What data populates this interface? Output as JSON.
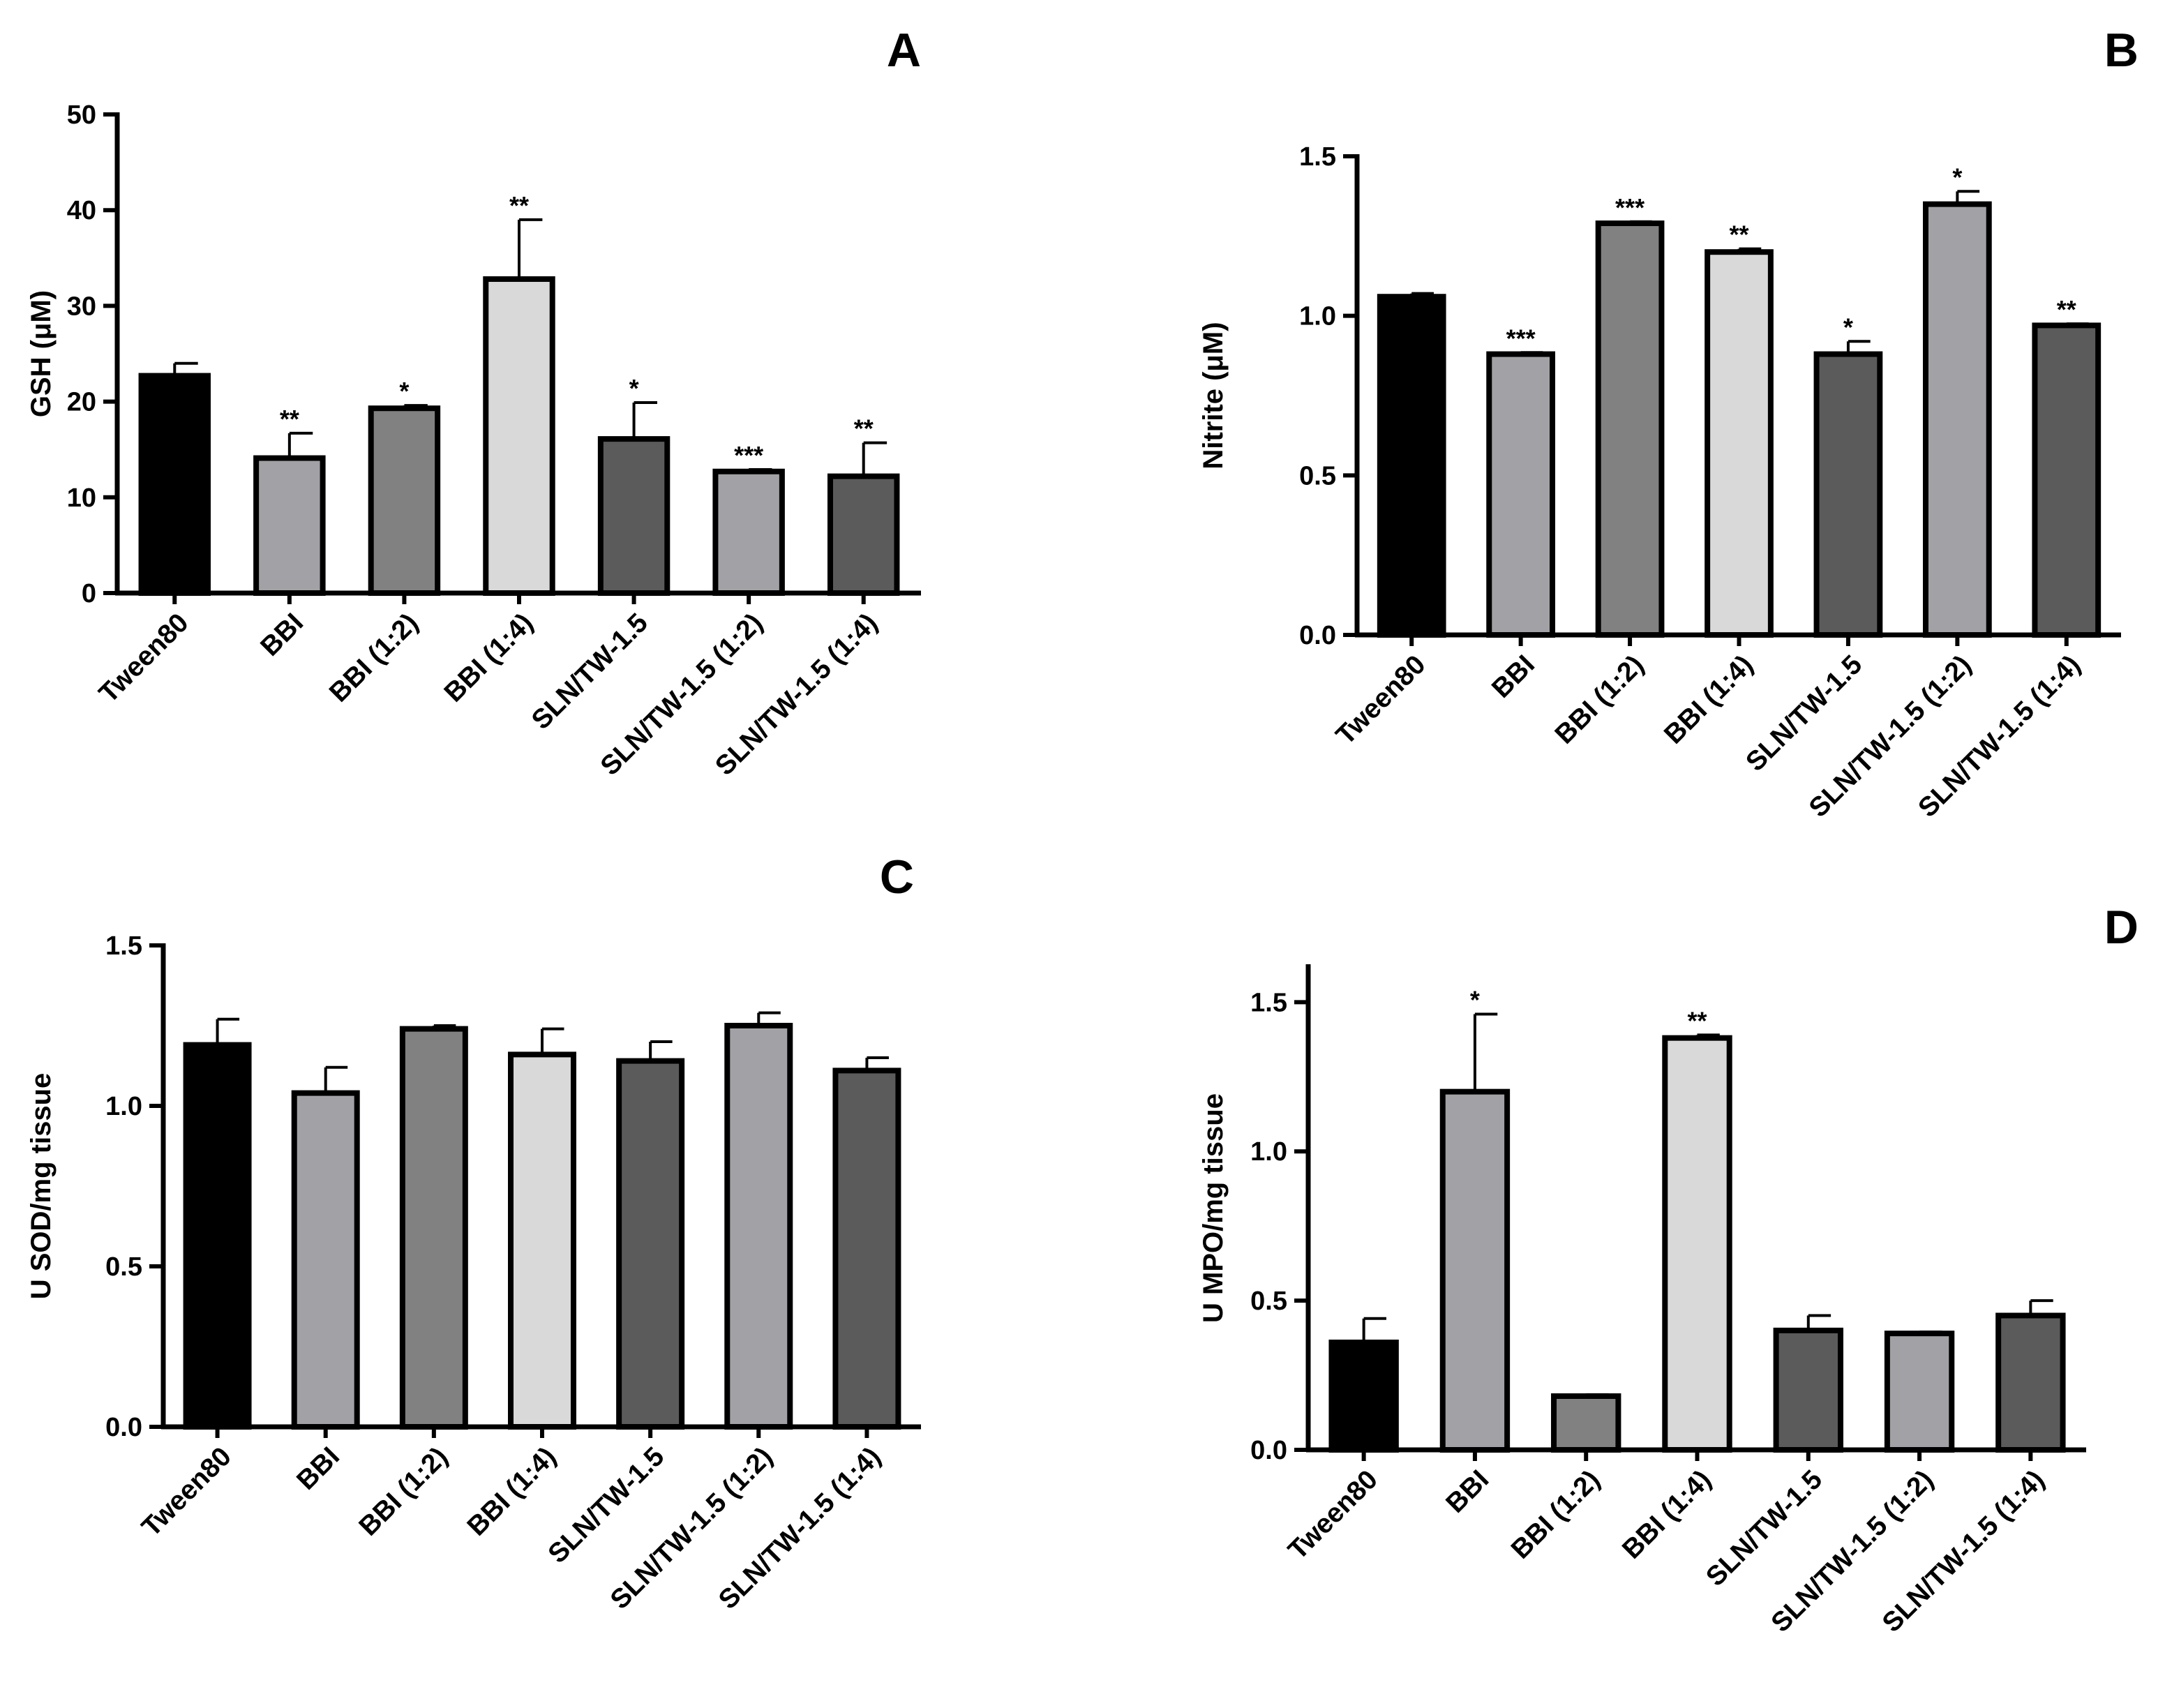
{
  "figure": {
    "panel_count": 4
  },
  "chart_data": [
    {
      "panel": "A",
      "type": "bar",
      "title": "A",
      "xlabel": "",
      "ylabel": "GSH (μM)",
      "categories": [
        "Tween80",
        "BBI",
        "BBI (1:2)",
        "BBI (1:4)",
        "SLN/TW-1.5",
        "SLN/TW-1.5 (1:2)",
        "SLN/TW-1.5 (1:4)"
      ],
      "values": [
        22.7,
        14.1,
        19.3,
        32.8,
        16.1,
        12.7,
        12.2
      ],
      "errors": [
        1.3,
        2.6,
        0.3,
        6.2,
        3.8,
        0.2,
        3.5
      ],
      "significance": [
        "",
        "**",
        "*",
        "**",
        "*",
        "***",
        "**"
      ],
      "ylim": [
        0,
        50
      ],
      "yticks": [
        0,
        10,
        20,
        30,
        40,
        50
      ],
      "ytick_labels": [
        "0",
        "10",
        "20",
        "30",
        "40",
        "50"
      ]
    },
    {
      "panel": "B",
      "type": "bar",
      "title": "B",
      "xlabel": "",
      "ylabel": "Nitrite (μM)",
      "categories": [
        "Tween80",
        "BBI",
        "BBI (1:2)",
        "BBI (1:4)",
        "SLN/TW-1.5",
        "SLN/TW-1.5 (1:2)",
        "SLN/TW-1.5 (1:4)"
      ],
      "values": [
        1.06,
        0.88,
        1.29,
        1.2,
        0.88,
        1.35,
        0.97
      ],
      "errors": [
        0.01,
        0.005,
        0.005,
        0.01,
        0.04,
        0.04,
        0.005
      ],
      "significance": [
        "",
        "***",
        "***",
        "**",
        "*",
        "*",
        "**"
      ],
      "ylim": [
        0,
        1.5
      ],
      "yticks": [
        0,
        0.5,
        1.0,
        1.5
      ],
      "ytick_labels": [
        "0.0",
        "0.5",
        "1.0",
        "1.5"
      ]
    },
    {
      "panel": "C",
      "type": "bar",
      "title": "C",
      "xlabel": "",
      "ylabel": "U SOD/mg tissue",
      "categories": [
        "Tween80",
        "BBI",
        "BBI (1:2)",
        "BBI (1:4)",
        "SLN/TW-1.5",
        "SLN/TW-1.5 (1:2)",
        "SLN/TW-1.5 (1:4)"
      ],
      "values": [
        1.19,
        1.04,
        1.24,
        1.16,
        1.14,
        1.25,
        1.11
      ],
      "errors": [
        0.08,
        0.08,
        0.01,
        0.08,
        0.06,
        0.04,
        0.04
      ],
      "significance": [
        "",
        "",
        "",
        "",
        "",
        "",
        ""
      ],
      "ylim": [
        0,
        1.5
      ],
      "yticks": [
        0,
        0.5,
        1.0,
        1.5
      ],
      "ytick_labels": [
        "0.0",
        "0.5",
        "1.0",
        "1.5"
      ]
    },
    {
      "panel": "D",
      "type": "bar",
      "title": "D",
      "xlabel": "",
      "ylabel": "U MPO/mg tissue",
      "categories": [
        "Tween80",
        "BBI",
        "BBI (1:2)",
        "BBI (1:4)",
        "SLN/TW-1.5",
        "SLN/TW-1.5 (1:2)",
        "SLN/TW-1.5 (1:4)"
      ],
      "values": [
        0.36,
        1.2,
        0.18,
        1.38,
        0.4,
        0.39,
        0.45
      ],
      "errors": [
        0.08,
        0.26,
        0.005,
        0.01,
        0.05,
        0.005,
        0.05
      ],
      "significance": [
        "",
        "*",
        "",
        "**",
        "",
        "",
        ""
      ],
      "ylim": [
        0,
        1.62
      ],
      "yticks": [
        0,
        0.5,
        1.0,
        1.5
      ],
      "ytick_labels": [
        "0.0",
        "0.5",
        "1.0",
        "1.5"
      ]
    }
  ],
  "colors": {
    "bars": [
      "#000000",
      "#a2a2a6",
      "#818181",
      "#d9d9d9",
      "#5b5b5b",
      "#a2a2a6",
      "#5b5b5b"
    ],
    "outline": "#000000",
    "background": "#ffffff"
  }
}
